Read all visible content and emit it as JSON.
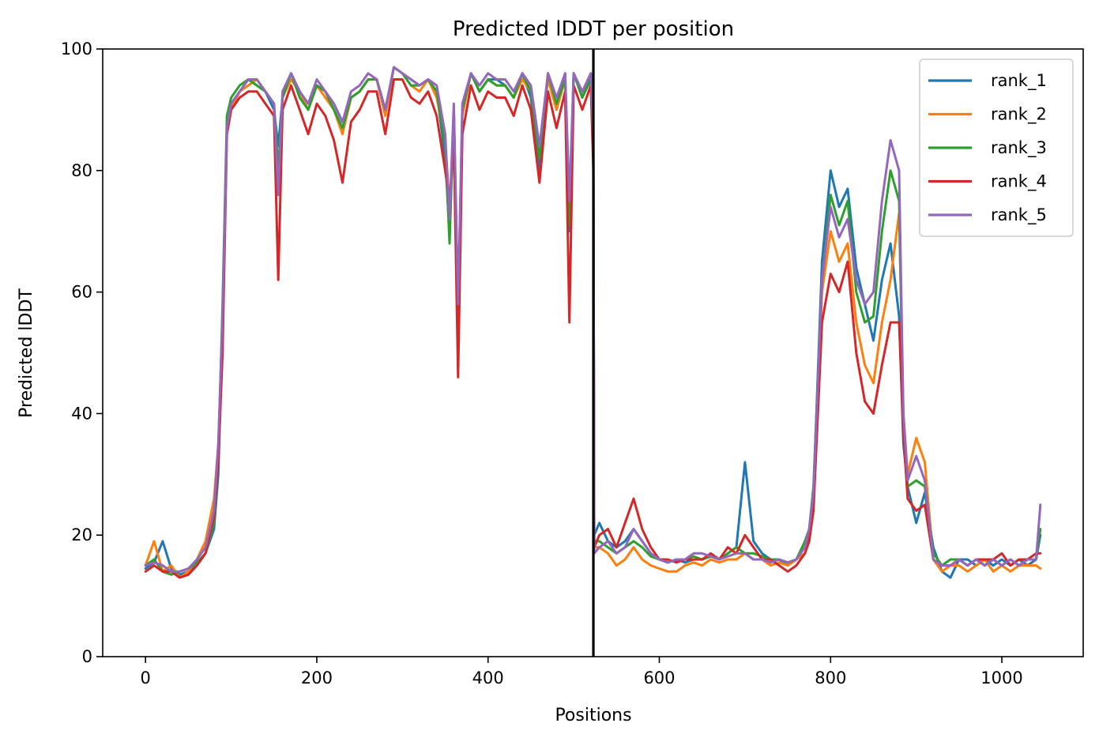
{
  "chart_data": {
    "type": "line",
    "title": "Predicted lDDT per position",
    "xlabel": "Positions",
    "ylabel": "Predicted lDDT",
    "xlim": [
      -50,
      1095
    ],
    "ylim": [
      0,
      100
    ],
    "xticks": [
      0,
      200,
      400,
      600,
      800,
      1000
    ],
    "yticks": [
      0,
      20,
      40,
      60,
      80,
      100
    ],
    "grid": false,
    "legend_position": "top-right",
    "divider_x": 523,
    "colors": {
      "rank_1": "#1f77b4",
      "rank_2": "#ff7f0e",
      "rank_3": "#2ca02c",
      "rank_4": "#d62728",
      "rank_5": "#9467bd",
      "divider": "#000000"
    },
    "x": [
      0,
      10,
      20,
      30,
      40,
      50,
      60,
      70,
      80,
      85,
      90,
      95,
      100,
      110,
      120,
      130,
      140,
      150,
      155,
      160,
      170,
      180,
      190,
      200,
      210,
      220,
      230,
      240,
      250,
      260,
      270,
      280,
      290,
      300,
      310,
      320,
      330,
      340,
      350,
      355,
      360,
      365,
      370,
      380,
      390,
      400,
      410,
      420,
      430,
      440,
      450,
      460,
      470,
      480,
      490,
      495,
      500,
      510,
      520,
      523,
      524,
      530,
      540,
      550,
      560,
      570,
      580,
      590,
      600,
      610,
      620,
      630,
      640,
      650,
      660,
      670,
      680,
      690,
      700,
      710,
      720,
      730,
      740,
      750,
      760,
      770,
      775,
      780,
      790,
      800,
      810,
      820,
      830,
      840,
      850,
      860,
      870,
      880,
      885,
      890,
      900,
      910,
      920,
      930,
      940,
      950,
      960,
      970,
      980,
      990,
      1000,
      1010,
      1020,
      1030,
      1040,
      1045
    ],
    "series": [
      {
        "name": "rank_1",
        "values": [
          14.5,
          15.5,
          19,
          14.5,
          13.5,
          14,
          15,
          17,
          21,
          30,
          55,
          87,
          91,
          93,
          95,
          94,
          93,
          90,
          84,
          92,
          96,
          93,
          91,
          94,
          93,
          91,
          88,
          92,
          93,
          95,
          95,
          90,
          97,
          96,
          95,
          94,
          95,
          93,
          82,
          70,
          90,
          55,
          90,
          96,
          93,
          95,
          95,
          94,
          92,
          96,
          92,
          80,
          96,
          90,
          96,
          70,
          96,
          92,
          96,
          85,
          20,
          22,
          19,
          18,
          19,
          21,
          19,
          17,
          16,
          15.5,
          16,
          15.5,
          16,
          16,
          16.5,
          16,
          17,
          18,
          32,
          19,
          17,
          16,
          16,
          15,
          16,
          18,
          20,
          27,
          65,
          80,
          74,
          77,
          64,
          58,
          52,
          62,
          68,
          56,
          35,
          28,
          22,
          27,
          18,
          14,
          13,
          16,
          16,
          15,
          16,
          15,
          16,
          15,
          16,
          15,
          16,
          20
        ]
      },
      {
        "name": "rank_2",
        "values": [
          15,
          19,
          14,
          15,
          13,
          14,
          16,
          19,
          26,
          35,
          55,
          86,
          90,
          93,
          94,
          95,
          93,
          91,
          78,
          92,
          95,
          93,
          90,
          94,
          92,
          90,
          86,
          92,
          93,
          95,
          95,
          89,
          97,
          96,
          94,
          93,
          95,
          92,
          85,
          74,
          88,
          58,
          89,
          96,
          93,
          95,
          94,
          94,
          92,
          95,
          93,
          83,
          95,
          90,
          95,
          72,
          96,
          92,
          95,
          83,
          18,
          18,
          17,
          15,
          16,
          18,
          16,
          15,
          14.5,
          14,
          14,
          15,
          15.5,
          15,
          16,
          15.5,
          16,
          16,
          17,
          16,
          16,
          15,
          15.5,
          15,
          16,
          17,
          19,
          25,
          60,
          70,
          65,
          68,
          55,
          48,
          45,
          55,
          62,
          73,
          40,
          30,
          36,
          32,
          16,
          14,
          15,
          15,
          14,
          15,
          16,
          14,
          15,
          14,
          15,
          15,
          15,
          14.5
        ]
      },
      {
        "name": "rank_3",
        "values": [
          15,
          16,
          14,
          13.5,
          14,
          14.5,
          15.5,
          17,
          22,
          33,
          58,
          89,
          92,
          94,
          95,
          94,
          93,
          91,
          80,
          92,
          96,
          92,
          90,
          94,
          93,
          90,
          87,
          92,
          93,
          95,
          95,
          90,
          97,
          96,
          94,
          94,
          95,
          93,
          84,
          68,
          90,
          54,
          90,
          96,
          93,
          95,
          94,
          94,
          92,
          96,
          93,
          82,
          96,
          91,
          95,
          71,
          96,
          92,
          95,
          84,
          19,
          19,
          18,
          17,
          18,
          19,
          18,
          16.5,
          16,
          15.5,
          16,
          16,
          16.5,
          16,
          16.5,
          16,
          17,
          18,
          17,
          17,
          16.5,
          16,
          16,
          15.5,
          16,
          19,
          21,
          28,
          62,
          76,
          71,
          75,
          60,
          55,
          56,
          70,
          80,
          75,
          38,
          28,
          29,
          28,
          17,
          15,
          16,
          16,
          15,
          16,
          15,
          16,
          15,
          16,
          15,
          16,
          16,
          21
        ]
      },
      {
        "name": "rank_4",
        "values": [
          14,
          15,
          14,
          14,
          13,
          13.5,
          15,
          17,
          23,
          32,
          50,
          86,
          90,
          92,
          93,
          93,
          91,
          89,
          62,
          90,
          94,
          90,
          86,
          91,
          89,
          85,
          78,
          88,
          90,
          93,
          93,
          86,
          95,
          95,
          92,
          91,
          93,
          89,
          80,
          75,
          85,
          46,
          86,
          94,
          90,
          93,
          92,
          92,
          89,
          94,
          90,
          78,
          93,
          87,
          93,
          55,
          94,
          90,
          94,
          80,
          18,
          20,
          21,
          18,
          22,
          26,
          21,
          18,
          16,
          16,
          15.5,
          16,
          16,
          16,
          17,
          16,
          18,
          17,
          20,
          18,
          16,
          16,
          15,
          14,
          15,
          17,
          19,
          24,
          55,
          63,
          60,
          65,
          50,
          42,
          40,
          48,
          55,
          55,
          37,
          26,
          24,
          25,
          16,
          15,
          15,
          16,
          15,
          16,
          16,
          16,
          17,
          15,
          16,
          16,
          17,
          17
        ]
      },
      {
        "name": "rank_5",
        "values": [
          15,
          15.5,
          15,
          14,
          14,
          14.5,
          16,
          18,
          24,
          35,
          56,
          87,
          91,
          93,
          95,
          95,
          93,
          91,
          76,
          93,
          96,
          93,
          91,
          95,
          93,
          91,
          88,
          93,
          94,
          96,
          95,
          90,
          97,
          96,
          95,
          94,
          95,
          94,
          86,
          72,
          91,
          58,
          91,
          96,
          94,
          96,
          95,
          95,
          93,
          96,
          94,
          84,
          96,
          92,
          96,
          75,
          96,
          93,
          96,
          86,
          17,
          18,
          19,
          17,
          18,
          21,
          19,
          17,
          16,
          15.5,
          16,
          16,
          17,
          17,
          16.5,
          16,
          16.5,
          17,
          17,
          16,
          16,
          15.5,
          16,
          15.5,
          16,
          18,
          21,
          27,
          62,
          74,
          69,
          72,
          62,
          58,
          60,
          75,
          85,
          80,
          40,
          29,
          33,
          29,
          16,
          15,
          15,
          16,
          15,
          16,
          15,
          16,
          15,
          16,
          15,
          16,
          16,
          25
        ]
      }
    ]
  }
}
